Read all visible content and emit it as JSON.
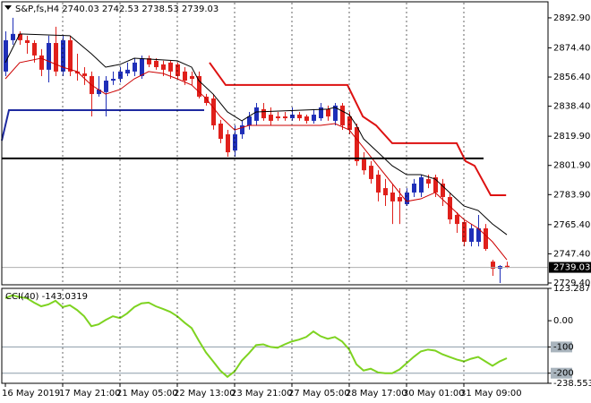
{
  "chart_data": [
    {
      "type": "candlestick",
      "title": "S&P,fs,H4  2740.03 2742.53 2738.53 2739.03",
      "up_color": "#1f2fb8",
      "down_color": "#e0201b",
      "ohlc": [
        [
          2859.8,
          2884.6,
          2857.0,
          2879.1
        ],
        [
          2879.1,
          2892.9,
          2876.3,
          2883.0
        ],
        [
          2883.0,
          2884.6,
          2876.3,
          2879.1
        ],
        [
          2879.1,
          2881.9,
          2870.8,
          2877.4
        ],
        [
          2877.4,
          2879.1,
          2865.3,
          2869.7
        ],
        [
          2869.7,
          2873.6,
          2857.0,
          2860.9
        ],
        [
          2860.9,
          2881.9,
          2853.1,
          2877.4
        ],
        [
          2877.4,
          2887.4,
          2857.0,
          2859.8
        ],
        [
          2859.8,
          2881.9,
          2857.0,
          2879.1
        ],
        [
          2879.1,
          2881.9,
          2857.0,
          2859.8
        ],
        [
          2859.8,
          2870.8,
          2854.2,
          2858.6
        ],
        [
          2858.6,
          2862.5,
          2851.5,
          2857.0
        ],
        [
          2857.0,
          2859.8,
          2832.1,
          2845.9
        ],
        [
          2845.9,
          2857.0,
          2844.3,
          2848.7
        ],
        [
          2847.1,
          2857.0,
          2832.1,
          2854.2
        ],
        [
          2854.2,
          2859.8,
          2851.5,
          2855.3
        ],
        [
          2855.3,
          2862.5,
          2853.1,
          2859.8
        ],
        [
          2858.6,
          2865.3,
          2857.0,
          2860.9
        ],
        [
          2859.8,
          2868.0,
          2857.0,
          2865.3
        ],
        [
          2857.0,
          2869.7,
          2855.3,
          2868.0
        ],
        [
          2868.0,
          2869.7,
          2862.5,
          2864.2
        ],
        [
          2866.4,
          2868.0,
          2860.9,
          2862.5
        ],
        [
          2864.2,
          2866.4,
          2857.0,
          2860.9
        ],
        [
          2865.3,
          2866.4,
          2855.3,
          2859.8
        ],
        [
          2864.2,
          2865.3,
          2855.3,
          2857.0
        ],
        [
          2859.8,
          2862.5,
          2851.5,
          2854.2
        ],
        [
          2857.0,
          2859.8,
          2851.5,
          2855.3
        ],
        [
          2857.0,
          2859.8,
          2843.2,
          2844.3
        ],
        [
          2844.3,
          2846.0,
          2838.8,
          2840.4
        ],
        [
          2843.2,
          2845.9,
          2824.0,
          2826.6
        ],
        [
          2827.7,
          2830.0,
          2815.6,
          2818.3
        ],
        [
          2821.1,
          2823.8,
          2807.3,
          2810.0
        ],
        [
          2811.1,
          2826.6,
          2807.3,
          2821.1
        ],
        [
          2821.1,
          2829.4,
          2818.3,
          2826.6
        ],
        [
          2826.6,
          2834.9,
          2824.0,
          2832.1
        ],
        [
          2829.4,
          2840.4,
          2826.6,
          2837.7
        ],
        [
          2836.6,
          2840.4,
          2829.4,
          2831.0
        ],
        [
          2833.2,
          2837.7,
          2826.6,
          2829.4
        ],
        [
          2832.1,
          2834.9,
          2829.4,
          2831.0
        ],
        [
          2832.1,
          2834.9,
          2829.4,
          2831.0
        ],
        [
          2831.0,
          2837.7,
          2829.4,
          2833.2
        ],
        [
          2833.2,
          2834.9,
          2829.4,
          2831.0
        ],
        [
          2832.1,
          2833.2,
          2827.7,
          2829.4
        ],
        [
          2829.4,
          2836.6,
          2827.7,
          2833.2
        ],
        [
          2831.0,
          2840.4,
          2829.4,
          2837.7
        ],
        [
          2836.6,
          2838.8,
          2829.4,
          2832.1
        ],
        [
          2829.4,
          2840.4,
          2826.6,
          2838.8
        ],
        [
          2838.8,
          2840.4,
          2823.8,
          2826.6
        ],
        [
          2832.1,
          2834.9,
          2821.1,
          2823.8
        ],
        [
          2825.5,
          2827.7,
          2801.7,
          2804.5
        ],
        [
          2805.6,
          2810.0,
          2796.2,
          2798.9
        ],
        [
          2801.7,
          2804.5,
          2790.7,
          2793.5
        ],
        [
          2796.2,
          2798.9,
          2779.7,
          2785.2
        ],
        [
          2787.9,
          2793.5,
          2776.9,
          2783.5
        ],
        [
          2785.2,
          2790.7,
          2765.8,
          2779.7
        ],
        [
          2782.4,
          2787.9,
          2765.8,
          2779.7
        ],
        [
          2778.0,
          2787.9,
          2776.9,
          2785.2
        ],
        [
          2785.2,
          2793.5,
          2782.4,
          2790.7
        ],
        [
          2785.2,
          2796.2,
          2782.4,
          2794.6
        ],
        [
          2793.5,
          2796.2,
          2787.9,
          2790.7
        ],
        [
          2794.6,
          2796.2,
          2782.4,
          2785.2
        ],
        [
          2790.7,
          2793.5,
          2776.9,
          2782.4
        ],
        [
          2782.4,
          2785.2,
          2765.8,
          2768.6
        ],
        [
          2771.4,
          2773.0,
          2760.3,
          2765.8
        ],
        [
          2767.0,
          2768.6,
          2752.0,
          2754.8
        ],
        [
          2754.8,
          2765.8,
          2752.0,
          2763.1
        ],
        [
          2754.8,
          2771.4,
          2752.0,
          2763.1
        ],
        [
          2763.1,
          2765.8,
          2749.3,
          2750.4
        ],
        [
          2742.6,
          2743.7,
          2733.8,
          2738.2
        ],
        [
          2738.2,
          2740.4,
          2729.4,
          2739.9
        ],
        [
          2740.03,
          2742.53,
          2738.53,
          2739.03
        ]
      ],
      "series": [
        {
          "color": "#000000",
          "width": 1,
          "x": [
            0,
            2,
            9,
            12,
            14,
            16,
            18,
            24,
            26,
            27,
            29,
            31,
            33,
            35,
            45,
            46,
            48,
            49,
            50,
            52,
            54,
            56,
            58,
            60,
            62,
            64,
            66,
            68,
            70
          ],
          "values": [
            2865.3,
            2883.0,
            2881.9,
            2870.8,
            2862.5,
            2864.2,
            2868.0,
            2866.4,
            2862.5,
            2854.2,
            2845.9,
            2834.9,
            2829.4,
            2834.9,
            2836.6,
            2837.7,
            2833.2,
            2826.6,
            2818.3,
            2810.0,
            2801.7,
            2796.2,
            2796.2,
            2793.5,
            2785.2,
            2776.9,
            2774.1,
            2765.8,
            2759.2
          ]
        },
        {
          "color": "#cc0000",
          "width": 1,
          "x": [
            0,
            2,
            5,
            8,
            10,
            12,
            14,
            16,
            18,
            20,
            22,
            24,
            26,
            28,
            30,
            32,
            34,
            44,
            46,
            48,
            50,
            52,
            54,
            56,
            58,
            60,
            62,
            64,
            66,
            68,
            70
          ],
          "values": [
            2855.3,
            2865.3,
            2868.0,
            2862.5,
            2859.8,
            2851.5,
            2845.9,
            2848.7,
            2855.3,
            2859.8,
            2858.6,
            2855.3,
            2851.5,
            2843.2,
            2832.1,
            2823.8,
            2826.6,
            2826.6,
            2827.7,
            2823.8,
            2812.8,
            2801.7,
            2790.7,
            2779.7,
            2781.3,
            2785.2,
            2776.9,
            2768.6,
            2763.1,
            2754.8,
            2743.7
          ]
        },
        {
          "color": "#1e2aa0",
          "width": 2,
          "x": [
            -0.5,
            0.5,
            27.75
          ],
          "values": [
            2817.2,
            2836.0,
            2836.0
          ]
        },
        {
          "color": "#000000",
          "width": 2,
          "x": [
            -0.5,
            66.75
          ],
          "values": [
            2806.2,
            2806.2
          ]
        },
        {
          "color": "#dd1111",
          "width": 2,
          "x": [
            28.5,
            30.75,
            47.75,
            49.9,
            51.75,
            54,
            63,
            64.25,
            65.5,
            67.75,
            69.9
          ],
          "values": [
            2865.3,
            2851.5,
            2851.5,
            2832.1,
            2826.6,
            2815.6,
            2815.6,
            2804.5,
            2801.7,
            2783.5,
            2783.5
          ]
        }
      ],
      "ylim": [
        2728.3,
        2902.8
      ],
      "yticks": [
        {
          "value": 2892.9,
          "label": "2892.90"
        },
        {
          "value": 2874.4,
          "label": "2874.40"
        },
        {
          "value": 2856.4,
          "label": "2856.40"
        },
        {
          "value": 2838.4,
          "label": "2838.40"
        },
        {
          "value": 2819.9,
          "label": "2819.90"
        },
        {
          "value": 2801.9,
          "label": "2801.90"
        },
        {
          "value": 2783.9,
          "label": "2783.90"
        },
        {
          "value": 2765.4,
          "label": "2765.40"
        },
        {
          "value": 2747.4,
          "label": "2747.40"
        },
        {
          "value": 2729.4,
          "label": "2729.40"
        }
      ],
      "xticks": [
        {
          "value": 0,
          "label": "16 May 2019"
        },
        {
          "value": 8,
          "label": "17 May 21:00"
        },
        {
          "value": 16,
          "label": "21 May 05:00"
        },
        {
          "value": 24,
          "label": "22 May 13:00"
        },
        {
          "value": 32,
          "label": "23 May 21:00"
        },
        {
          "value": 40,
          "label": "27 May 05:00"
        },
        {
          "value": 48,
          "label": "28 May 17:00"
        },
        {
          "value": 56,
          "label": "30 May 01:00"
        },
        {
          "value": 64,
          "label": "31 May 09:00"
        }
      ],
      "grid": true
    },
    {
      "type": "line",
      "title": "CCI(40) -143.0319",
      "color": "#7ed321",
      "values": [
        86,
        97,
        90,
        86,
        69,
        55,
        62,
        76,
        52,
        59,
        41,
        17,
        -21,
        -14,
        3,
        17,
        10,
        28,
        52,
        66,
        69,
        55,
        45,
        34,
        17,
        -7,
        -28,
        -76,
        -121,
        -155,
        -190,
        -214,
        -193,
        -152,
        -124,
        -93,
        -90,
        -100,
        -103,
        -90,
        -79,
        -72,
        -62,
        -41,
        -59,
        -69,
        -62,
        -79,
        -110,
        -166,
        -190,
        -183,
        -197,
        -200,
        -200,
        -186,
        -162,
        -138,
        -117,
        -110,
        -114,
        -128,
        -138,
        -148,
        -155,
        -145,
        -138,
        -155,
        -172,
        -155,
        -143.0319
      ],
      "ylim": [
        -238.5534,
        123.2871
      ],
      "yticks": [
        123.2871,
        {
          "value": 0,
          "label": "0.00"
        },
        -100,
        -200,
        -238.5534
      ],
      "levels": [
        -100,
        -200
      ]
    }
  ]
}
